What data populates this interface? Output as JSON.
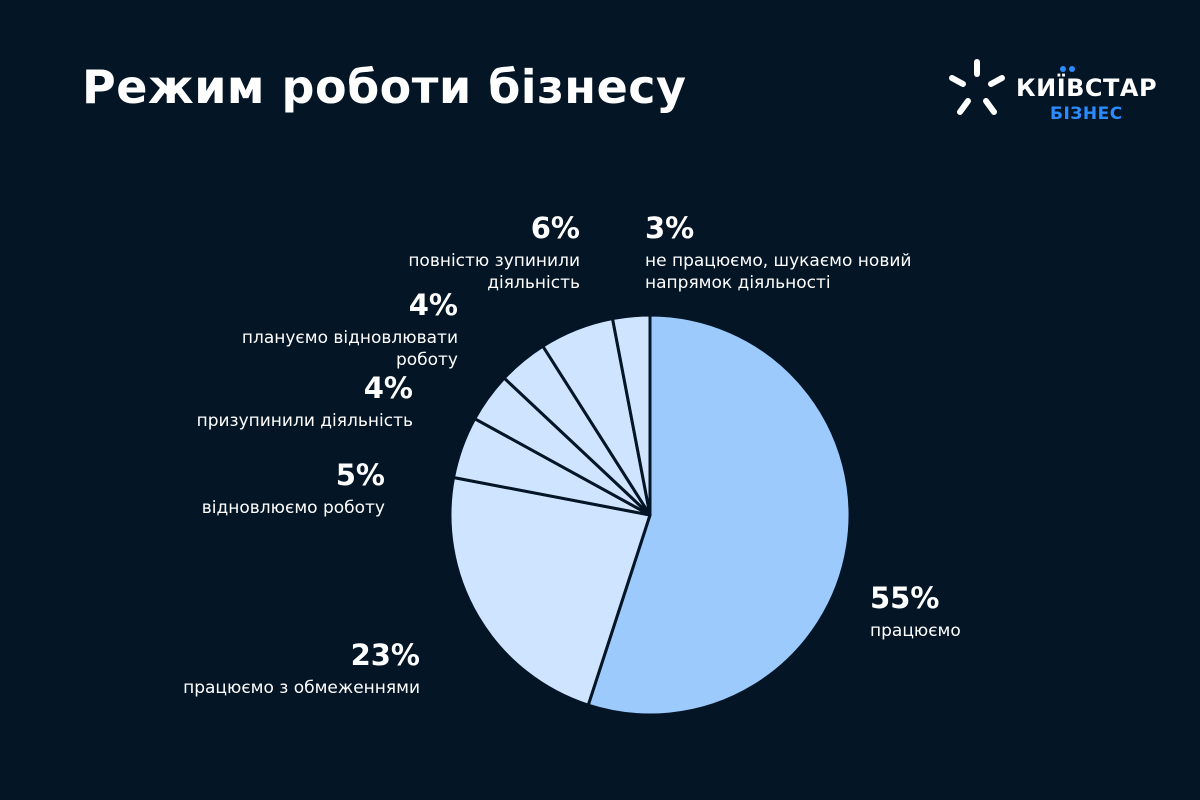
{
  "header": {
    "title": "Режим роботи бізнесу"
  },
  "logo": {
    "brand": "КИЇВСТАР",
    "sub": "БІЗНЕС"
  },
  "colors": {
    "background": "#041526",
    "main_slice": "#9ccafc",
    "other_slices": "#cfe5ff",
    "slice_border": "#041526",
    "logo_accent": "#2a8cff"
  },
  "chart_data": {
    "type": "pie",
    "title": "Режим роботи бізнесу",
    "slices": [
      {
        "label": "працюємо",
        "value": 55,
        "value_label": "55%"
      },
      {
        "label": "працюємо з обмеженнями",
        "value": 23,
        "value_label": "23%"
      },
      {
        "label": "відновлюємо роботу",
        "value": 5,
        "value_label": "5%"
      },
      {
        "label": "призупинили діяльність",
        "value": 4,
        "value_label": "4%"
      },
      {
        "label": "плануємо відновлювати роботу",
        "value": 4,
        "value_label": "4%"
      },
      {
        "label": "повністю зупинили діяльність",
        "value": 6,
        "value_label": "6%"
      },
      {
        "label": "не працюємо, шукаємо новий напрямок діяльності",
        "value": 3,
        "value_label": "3%"
      }
    ],
    "start": "12 o'clock",
    "direction": "clockwise"
  }
}
